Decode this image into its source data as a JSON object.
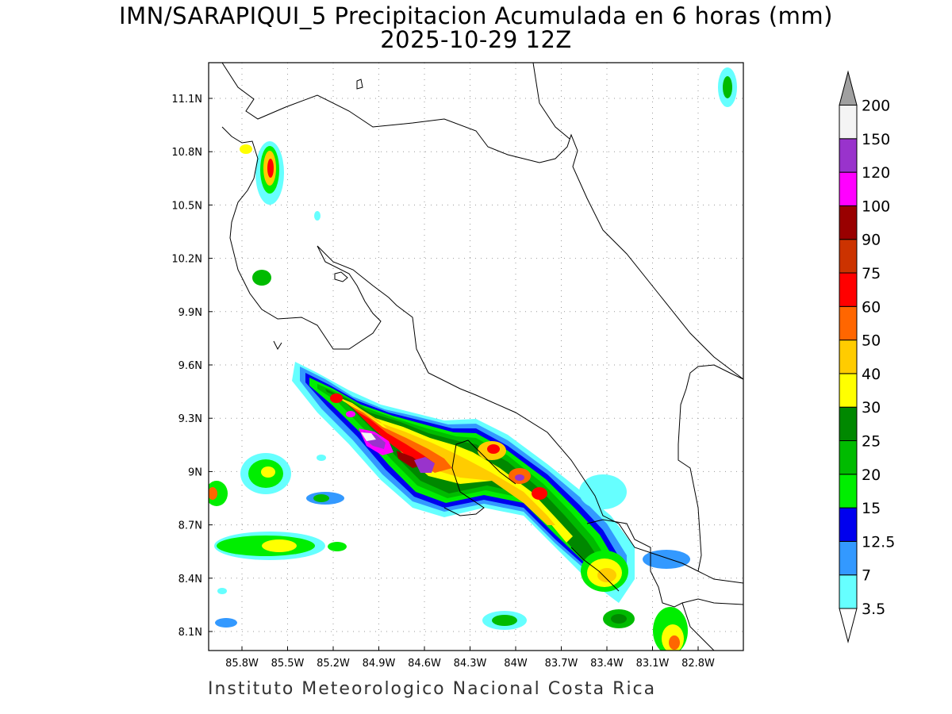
{
  "title": {
    "line1": "IMN/SARAPIQUI_5 Precipitacion Acumulada en 6 horas (mm)",
    "line2": "2025-10-29 12Z"
  },
  "footer": "Instituto Meteorologico Nacional Costa Rica",
  "axes": {
    "lat_labels": [
      "11.1N",
      "10.8N",
      "10.5N",
      "10.2N",
      "9.9N",
      "9.6N",
      "9.3N",
      "9N",
      "8.7N",
      "8.4N",
      "8.1N"
    ],
    "lon_labels": [
      "85.8W",
      "85.5W",
      "85.2W",
      "84.9W",
      "84.6W",
      "84.3W",
      "84W",
      "83.7W",
      "83.4W",
      "83.1W",
      "82.8W"
    ],
    "grid": true
  },
  "colorbar": {
    "levels": [
      "3.5",
      "7",
      "12.5",
      "15",
      "20",
      "25",
      "30",
      "40",
      "50",
      "60",
      "75",
      "90",
      "100",
      "120",
      "150",
      "200"
    ],
    "colors": [
      "#ffffff",
      "#66ffff",
      "#3399ff",
      "#0000ee",
      "#00ee00",
      "#00bb00",
      "#008800",
      "#ffff00",
      "#ffcc00",
      "#ff6600",
      "#ff0000",
      "#cc3300",
      "#990000",
      "#ff00ff",
      "#9933cc",
      "#f4f4f4",
      "#a0a0a0"
    ]
  }
}
